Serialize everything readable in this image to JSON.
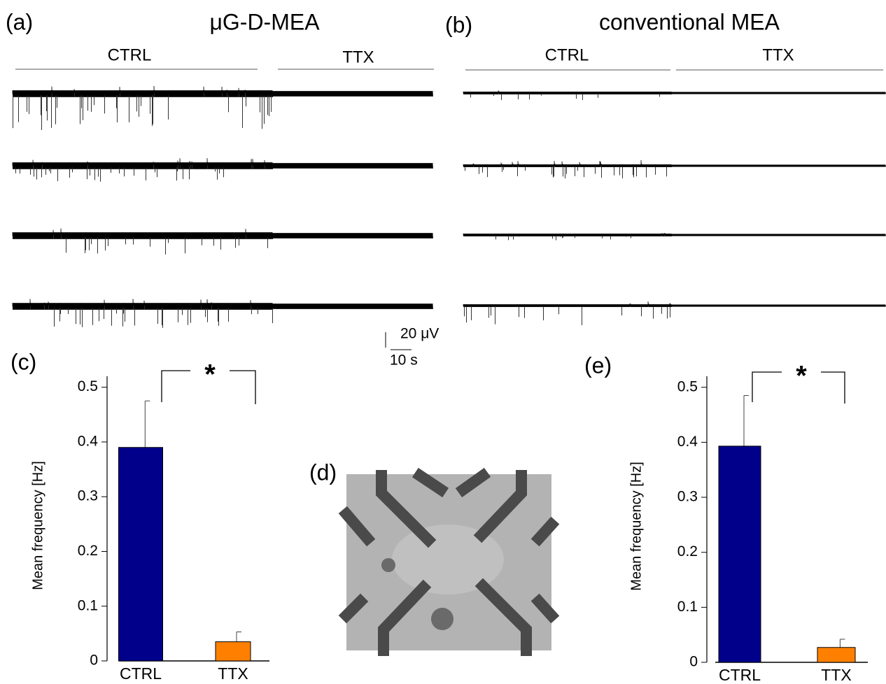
{
  "figure": {
    "panels": {
      "a": {
        "label": "(a)",
        "title": "μG-D-MEA",
        "conditions": [
          "CTRL",
          "TTX"
        ]
      },
      "b": {
        "label": "(b)",
        "title": "conventional MEA",
        "conditions": [
          "CTRL",
          "TTX"
        ]
      },
      "d": {
        "label": "(d)"
      }
    },
    "scale_bar": {
      "amplitude": "20 μV",
      "time": "10 s"
    }
  },
  "chart_data": [
    {
      "type": "bar",
      "panel_label": "(c)",
      "ylabel": "Mean frequency [Hz]",
      "categories": [
        "CTRL",
        "TTX"
      ],
      "values": [
        0.39,
        0.035
      ],
      "errors": [
        0.085,
        0.018
      ],
      "colors": [
        "#00008b",
        "#ff8000"
      ],
      "ylim": [
        0,
        0.52
      ],
      "yticks": [
        0,
        0.1,
        0.2,
        0.3,
        0.4,
        0.5
      ],
      "annotation": "*"
    },
    {
      "type": "bar",
      "panel_label": "(e)",
      "ylabel": "Mean frequency [Hz]",
      "categories": [
        "CTRL",
        "TTX"
      ],
      "values": [
        0.393,
        0.027
      ],
      "errors": [
        0.092,
        0.015
      ],
      "colors": [
        "#00008b",
        "#ff8000"
      ],
      "ylim": [
        0,
        0.52
      ],
      "yticks": [
        0,
        0.1,
        0.2,
        0.3,
        0.4,
        0.5
      ],
      "annotation": "*"
    }
  ]
}
